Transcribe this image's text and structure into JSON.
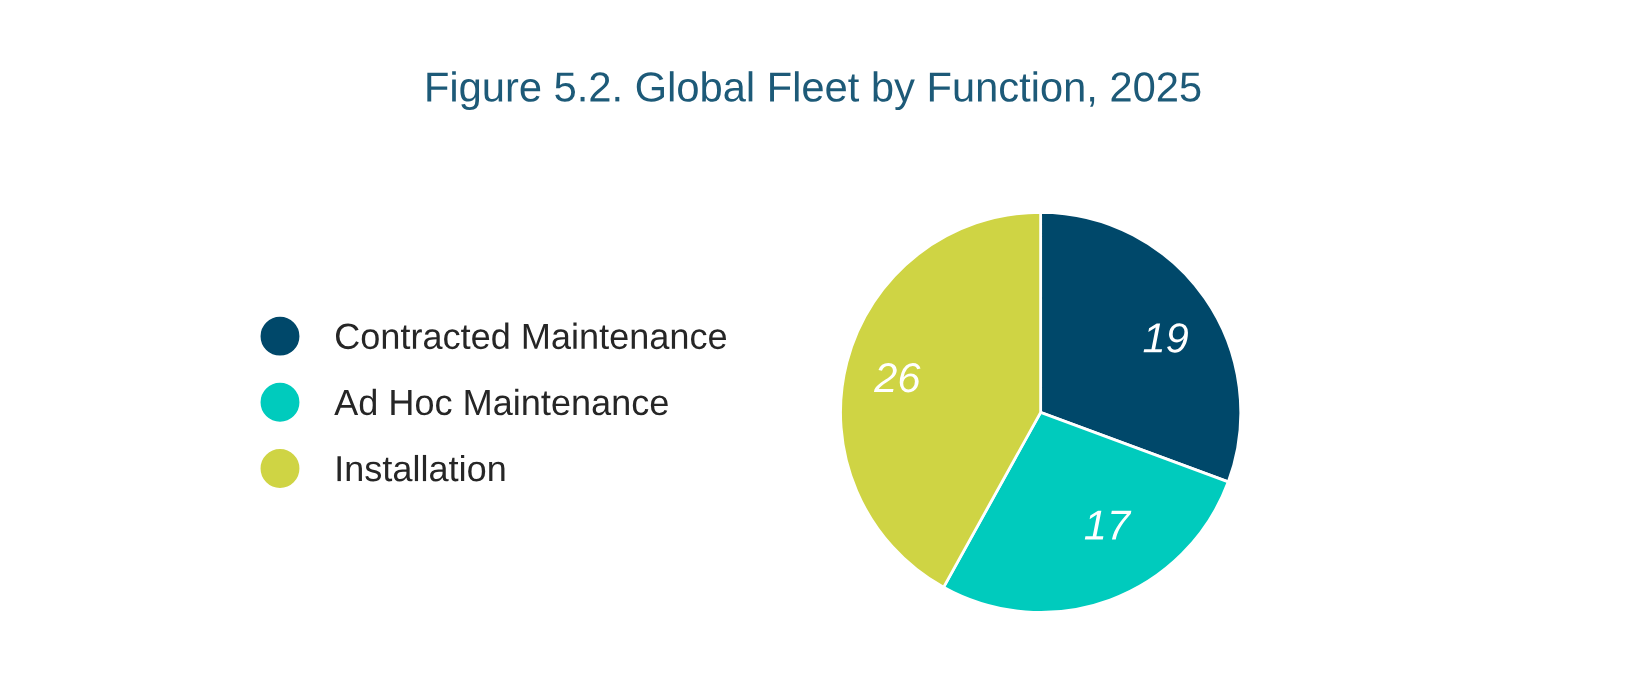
{
  "chart_data": {
    "type": "pie",
    "title": "Figure 5.2. Global Fleet by Function, 2025",
    "categories": [
      "Contracted Maintenance",
      "Ad Hoc Maintenance",
      "Installation"
    ],
    "values": [
      19,
      17,
      26
    ],
    "colors": [
      "#00486a",
      "#00cbbd",
      "#cfd444"
    ],
    "data_labels": true,
    "legend": "left"
  }
}
